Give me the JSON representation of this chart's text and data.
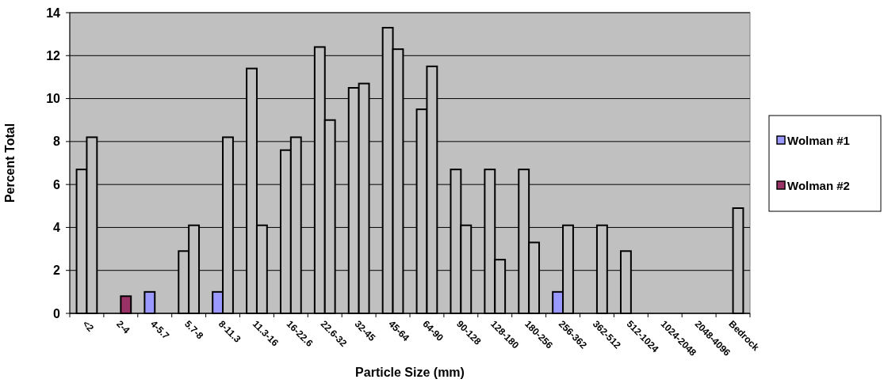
{
  "chart_data": {
    "type": "bar",
    "xlabel": "Particle Size (mm)",
    "ylabel": "Percent Total",
    "categories": [
      "<2",
      "2-4",
      "4-5.7",
      "5.7-8",
      "8-11.3",
      "11.3-16",
      "16-22.6",
      "22.6-32",
      "32-45",
      "45-64",
      "64-90",
      "90-128",
      "128-180",
      "180-256",
      "256-362",
      "362-512",
      "512-1024",
      "1024-2048",
      "2048-4096",
      "Bedrock"
    ],
    "series": [
      {
        "name": "Wolman #1",
        "color": "#9999ff",
        "values": [
          6.7,
          null,
          1,
          2.9,
          1,
          11.4,
          7.6,
          12.4,
          10.5,
          13.3,
          9.5,
          6.7,
          6.7,
          6.7,
          1,
          null,
          2.9,
          null,
          null,
          null
        ],
        "colors": [
          "#c0c0c0",
          null,
          "#9999ff",
          "#c0c0c0",
          "#9999ff",
          "#c0c0c0",
          "#c0c0c0",
          "#c0c0c0",
          "#c0c0c0",
          "#c0c0c0",
          "#c0c0c0",
          "#c0c0c0",
          "#c0c0c0",
          "#c0c0c0",
          "#9999ff",
          null,
          "#c0c0c0",
          null,
          null,
          null
        ]
      },
      {
        "name": "Wolman #2",
        "color": "#993366",
        "values": [
          8.2,
          0.8,
          null,
          4.1,
          8.2,
          4.1,
          8.2,
          9,
          10.7,
          12.3,
          11.5,
          4.1,
          2.5,
          3.3,
          4.1,
          4.1,
          null,
          null,
          null,
          4.9
        ],
        "colors": [
          "#c0c0c0",
          "#993366",
          null,
          "#c0c0c0",
          "#c0c0c0",
          "#c0c0c0",
          "#c0c0c0",
          "#c0c0c0",
          "#c0c0c0",
          "#c0c0c0",
          "#c0c0c0",
          "#c0c0c0",
          "#c0c0c0",
          "#c0c0c0",
          "#c0c0c0",
          "#c0c0c0",
          null,
          null,
          null,
          "#c0c0c0"
        ]
      }
    ],
    "ylim": [
      0,
      14
    ],
    "yticks": [
      0,
      2,
      4,
      6,
      8,
      10,
      12,
      14
    ],
    "grid": "y",
    "legend": "right"
  }
}
